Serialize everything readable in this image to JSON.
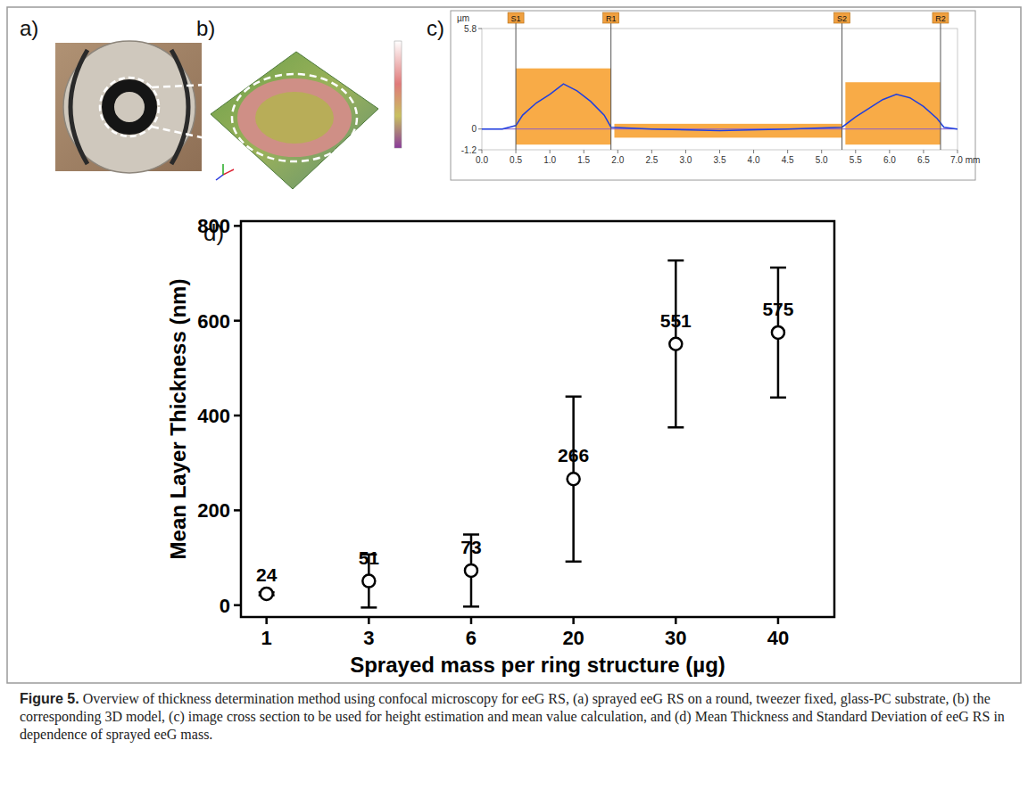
{
  "figure": {
    "panel_labels": [
      "a)",
      "b)",
      "c)",
      "d)"
    ],
    "caption_label": "Figure 5.",
    "caption_text": "Overview of thickness determination method using confocal microscopy for eeG RS, (a) sprayed eeG RS on a round, tweezer fixed, glass-PC substrate, (b) the corresponding 3D model, (c) image cross section to be used for height estimation and mean value calculation, and (d) Mean Thickness and Standard Deviation of eeG RS in dependence of sprayed eeG mass."
  },
  "profile": {
    "type": "line",
    "y_unit": "µm",
    "color": "#1f3fe0",
    "xlim": [
      0,
      7
    ],
    "ylim": [
      -1.2,
      5.8
    ],
    "xticks": [
      {
        "value": 0,
        "label": "0.0"
      },
      {
        "value": 0.5,
        "label": "0.5"
      },
      {
        "value": 1,
        "label": "1.0"
      },
      {
        "value": 1.5,
        "label": "1.5"
      },
      {
        "value": 2,
        "label": "2.0"
      },
      {
        "value": 2.5,
        "label": "2.5"
      },
      {
        "value": 3,
        "label": "3.0"
      },
      {
        "value": 3.5,
        "label": "3.5"
      },
      {
        "value": 4,
        "label": "4.0"
      },
      {
        "value": 4.5,
        "label": "4.5"
      },
      {
        "value": 5,
        "label": "5.0"
      },
      {
        "value": 5.5,
        "label": "5.5"
      },
      {
        "value": 6,
        "label": "6.0"
      },
      {
        "value": 6.5,
        "label": "6.5"
      },
      {
        "value": 7,
        "label": "7.0 mm"
      }
    ],
    "yticks": [
      -1.2,
      0,
      5.8
    ],
    "x": [
      0.0,
      0.3,
      0.5,
      0.6,
      0.8,
      1.0,
      1.2,
      1.4,
      1.6,
      1.8,
      1.9,
      2.5,
      3.5,
      4.5,
      5.3,
      5.5,
      5.7,
      5.9,
      6.1,
      6.3,
      6.5,
      6.7,
      6.8,
      7.0
    ],
    "y": [
      0,
      0,
      0.2,
      0.8,
      1.5,
      2.0,
      2.6,
      2.2,
      1.6,
      0.8,
      0.1,
      0,
      -0.1,
      0,
      0.1,
      0.7,
      1.2,
      1.7,
      2.0,
      1.8,
      1.3,
      0.6,
      0.1,
      0
    ],
    "markers": [
      {
        "label": "S1",
        "x": 0.5
      },
      {
        "label": "R1",
        "x": 1.9
      },
      {
        "label": "S2",
        "x": 5.3
      },
      {
        "label": "R2",
        "x": 6.75
      }
    ],
    "regions": [
      {
        "x": [
          0.5,
          1.9
        ],
        "y": [
          -0.9,
          3.5
        ]
      },
      {
        "x": [
          1.95,
          5.3
        ],
        "y": [
          -0.5,
          0.3
        ]
      },
      {
        "x": [
          5.35,
          6.75
        ],
        "y": [
          -0.9,
          2.7
        ]
      }
    ]
  },
  "chart_data": {
    "type": "scatter",
    "x_label": "Sprayed mass per ring structure (µg)",
    "y_label": "Mean Layer Thickness (nm)",
    "categories": [
      "1",
      "3",
      "6",
      "20",
      "30",
      "40"
    ],
    "values": [
      24,
      51,
      73,
      266,
      551,
      575
    ],
    "errors": [
      3,
      56,
      76,
      174,
      176,
      137
    ],
    "ylim": [
      -25,
      810
    ],
    "yticks": [
      0,
      200,
      400,
      600,
      800
    ],
    "marker": "open-circle",
    "color": "#000000",
    "data_labels": true,
    "grid": false
  }
}
